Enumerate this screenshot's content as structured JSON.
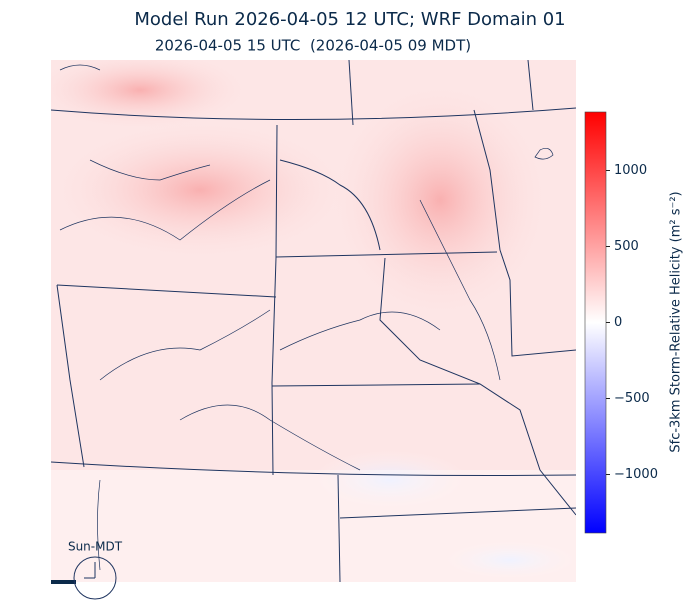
{
  "title": "Model Run 2026-04-05 12 UTC; WRF Domain 01",
  "subtitle": "2026-04-05 15 UTC  (2026-04-05 09 MDT)",
  "colorbar": {
    "label": "Sfc-3km Storm-Relative Helicity (m² s⁻²)",
    "lim": [
      -1385,
      1385
    ],
    "ticks": [
      1000,
      500,
      0,
      {
        "value": -500,
        "label": "−500"
      },
      {
        "value": -1000,
        "label": "−1000"
      }
    ],
    "colors": [
      "#0000ff",
      "#ffffff",
      "#ff0000"
    ]
  },
  "clock_label": "Sun-MDT"
}
